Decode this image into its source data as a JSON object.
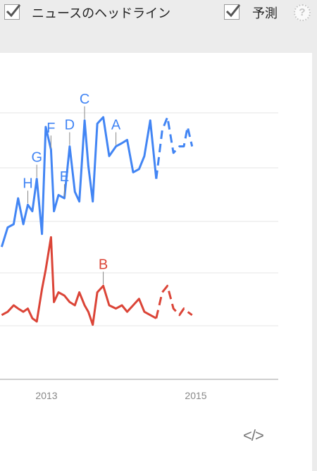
{
  "toolbar": {
    "news_label": "ニュースのヘッドライン",
    "forecast_label": "予測",
    "help_icon": "?",
    "news_checked": true,
    "forecast_checked": true
  },
  "embed_icon_text": "</>",
  "colors": {
    "blue": "#4285f4",
    "red": "#db4437",
    "grid": "#e6e6e6",
    "axis": "#9e9e9e",
    "tick_label": "#888888",
    "background": "#ececec",
    "panel": "#ffffff"
  },
  "chart_data": {
    "type": "line",
    "grid": true,
    "legend": "none",
    "x_ticks": [
      "2013",
      "2015"
    ],
    "x_tick_positions": [
      2013.0,
      2015.0
    ],
    "ylim": [
      0,
      100
    ],
    "series": [
      {
        "color": "#4285f4",
        "x": [
          2012.4,
          2012.48,
          2012.56,
          2012.62,
          2012.69,
          2012.75,
          2012.81,
          2012.87,
          2012.94,
          2012.99,
          2013.06,
          2013.1,
          2013.16,
          2013.24,
          2013.31,
          2013.38,
          2013.44,
          2013.51,
          2013.56,
          2013.62,
          2013.68,
          2013.76,
          2013.84,
          2013.93,
          2014.01,
          2014.08,
          2014.16,
          2014.24,
          2014.31,
          2014.39,
          2014.47,
          2014.55,
          2014.62,
          2014.7,
          2014.78,
          2014.84,
          2014.89,
          2014.95
        ],
        "y": [
          43,
          49,
          50,
          58,
          50,
          56,
          54,
          64,
          47,
          80,
          73,
          54,
          59,
          58,
          74,
          60,
          57,
          82,
          68,
          57,
          81,
          83,
          71,
          74,
          75,
          76,
          66,
          67,
          71,
          82,
          64,
          79,
          83,
          72,
          74,
          74,
          80,
          74
        ],
        "dashed_from_index": 30
      },
      {
        "color": "#db4437",
        "x": [
          2012.4,
          2012.48,
          2012.56,
          2012.62,
          2012.69,
          2012.75,
          2012.81,
          2012.87,
          2012.94,
          2012.99,
          2013.06,
          2013.1,
          2013.16,
          2013.24,
          2013.31,
          2013.38,
          2013.44,
          2013.51,
          2013.56,
          2013.62,
          2013.68,
          2013.76,
          2013.84,
          2013.93,
          2014.01,
          2014.08,
          2014.16,
          2014.24,
          2014.31,
          2014.39,
          2014.47,
          2014.55,
          2014.62,
          2014.7,
          2014.78,
          2014.84,
          2014.89,
          2014.95
        ],
        "y": [
          22,
          23,
          25,
          24,
          23,
          24,
          21,
          20,
          30,
          36,
          46,
          26,
          29,
          28,
          26,
          25,
          29,
          25,
          23,
          19,
          29,
          31,
          25,
          24,
          25,
          23,
          25,
          27,
          23,
          22,
          21,
          29,
          31,
          24,
          22,
          24,
          23,
          22
        ],
        "dashed_from_index": 30
      }
    ],
    "annotations": [
      {
        "label": "H",
        "series": 0,
        "index": 5
      },
      {
        "label": "G",
        "series": 0,
        "index": 7
      },
      {
        "label": "F",
        "series": 0,
        "index": 10
      },
      {
        "label": "E",
        "series": 0,
        "index": 13
      },
      {
        "label": "D",
        "series": 0,
        "index": 14
      },
      {
        "label": "C",
        "series": 0,
        "index": 17
      },
      {
        "label": "A",
        "series": 0,
        "index": 23
      },
      {
        "label": "B",
        "series": 1,
        "index": 21
      }
    ]
  }
}
